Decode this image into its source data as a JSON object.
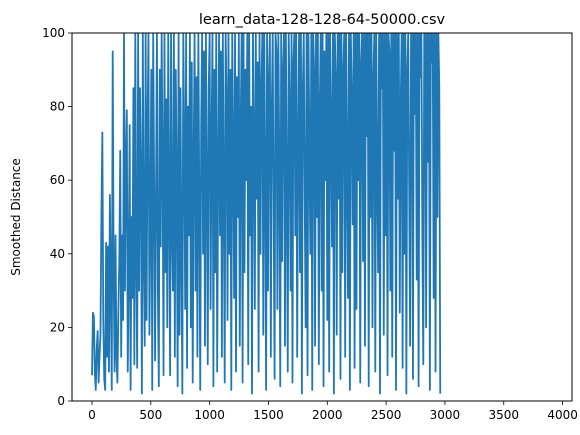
{
  "chart_data": {
    "type": "line",
    "title": "learn_data-128-128-64-50000.csv",
    "xlabel": "",
    "ylabel": "Smoothed Distance",
    "xlim": [
      -170,
      4080
    ],
    "ylim": [
      0,
      100
    ],
    "x_ticks": [
      0,
      500,
      1000,
      1500,
      2000,
      2500,
      3000,
      3500,
      4000
    ],
    "x_tick_labels": [
      "0",
      "500",
      "1000",
      "1500",
      "2000",
      "2500",
      "3000",
      "3500",
      "4000"
    ],
    "y_ticks": [
      0,
      20,
      40,
      60,
      80,
      100
    ],
    "y_tick_labels": [
      "0",
      "20",
      "40",
      "60",
      "80",
      "100"
    ],
    "grid": false,
    "series": [
      {
        "color": "#1f77b4",
        "x_start": 0,
        "x_step": 8,
        "values": [
          7,
          24,
          23,
          8,
          3,
          14,
          19,
          5,
          12,
          18,
          50,
          73,
          22,
          6,
          3,
          43,
          12,
          42,
          8,
          56,
          30,
          3,
          95,
          35,
          8,
          45,
          12,
          5,
          24,
          38,
          68,
          12,
          45,
          22,
          100,
          30,
          65,
          79,
          8,
          35,
          75,
          3,
          50,
          28,
          85,
          10,
          100,
          40,
          9,
          100,
          30,
          85,
          60,
          2,
          100,
          40,
          15,
          100,
          22,
          75,
          100,
          18,
          48,
          90,
          3,
          100,
          60,
          11,
          55,
          100,
          30,
          4,
          90,
          42,
          100,
          65,
          7,
          100,
          35,
          82,
          20,
          100,
          55,
          7,
          100,
          45,
          30,
          100,
          12,
          90,
          60,
          4,
          100,
          18,
          85,
          40,
          2,
          100,
          70,
          25,
          100,
          9,
          80,
          45,
          100,
          20,
          92,
          5,
          65,
          100,
          30,
          88,
          12,
          100,
          55,
          3,
          75,
          100,
          40,
          95,
          15,
          100,
          60,
          10,
          85,
          100,
          25,
          70,
          100,
          4,
          90,
          35,
          100,
          8,
          60,
          100,
          45,
          95,
          12,
          100,
          58,
          5,
          100,
          82,
          22,
          100,
          40,
          90,
          3,
          100,
          68,
          28,
          100,
          8,
          88,
          50,
          100,
          15,
          75,
          100,
          5,
          100,
          35,
          90,
          60,
          100,
          10,
          100,
          45,
          80,
          2,
          100,
          70,
          25,
          100,
          55,
          92,
          8,
          100,
          40,
          85,
          100,
          18,
          100,
          62,
          3,
          100,
          30,
          88,
          100,
          12,
          78,
          100,
          50,
          6,
          100,
          95,
          25,
          100,
          65,
          4,
          100,
          38,
          90,
          100,
          15,
          100,
          58,
          8,
          100,
          80,
          30,
          100,
          5,
          92,
          100,
          45,
          100,
          12,
          70,
          100,
          35,
          100,
          2,
          85,
          100,
          55,
          20,
          100,
          7,
          100,
          68,
          40,
          100,
          3,
          100,
          90,
          15,
          100,
          50,
          100,
          10,
          80,
          100,
          30,
          100,
          4,
          95,
          60,
          100,
          22,
          100,
          8,
          100,
          75,
          42,
          100,
          2,
          100,
          88,
          18,
          100,
          55,
          100,
          6,
          100,
          35,
          90,
          100,
          12,
          100,
          65,
          28,
          100,
          3,
          100,
          82,
          48,
          100,
          9,
          100,
          25,
          100,
          60,
          100,
          5,
          92,
          100,
          38,
          100,
          15,
          100,
          72,
          100,
          4,
          100,
          50,
          100,
          20,
          88,
          100,
          8,
          100,
          62,
          35,
          100,
          2,
          100,
          85,
          100,
          18,
          100,
          45,
          100,
          7,
          100,
          95,
          30,
          100,
          12,
          100,
          68,
          100,
          3,
          100,
          55,
          100,
          24,
          80,
          100,
          9,
          100,
          40,
          100,
          2,
          90,
          100,
          58,
          15,
          100,
          100,
          6,
          100,
          78,
          100,
          33,
          100,
          4,
          100,
          88,
          100,
          45,
          10,
          100,
          100,
          20,
          100,
          65,
          100,
          3,
          100,
          92,
          100,
          28,
          100,
          8,
          100,
          50,
          100,
          85,
          2
        ]
      }
    ]
  }
}
